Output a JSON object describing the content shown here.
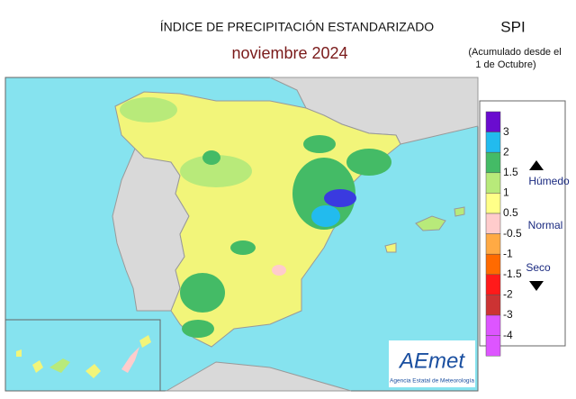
{
  "header": {
    "title": "ÍNDICE DE PRECIPITACIÓN ESTANDARIZADO",
    "subtitle": "noviembre  2024",
    "index": "SPI",
    "note": [
      "(Acumulado desde el",
      "1 de Octubre)"
    ]
  },
  "legend": {
    "items": [
      {
        "label": "3",
        "color": "#3a3ae0"
      },
      {
        "label": "2",
        "color": "#22bbee"
      },
      {
        "label": "1.5",
        "color": "#44bb66"
      },
      {
        "label": "1",
        "color": "#b8ea7a"
      },
      {
        "label": "0.5",
        "color": "#ffff88"
      },
      {
        "label": "-0.5",
        "color": "#ffcccc"
      },
      {
        "label": "-1",
        "color": "#ffaa44"
      },
      {
        "label": "-1.5",
        "color": "#ff6a00"
      },
      {
        "label": "-2",
        "color": "#ff1a1a"
      },
      {
        "label": "-3",
        "color": "#cc3333"
      },
      {
        "label": "-4",
        "color": "#dd55ff"
      }
    ],
    "top_color": "#6a0ccf",
    "wet": "Húmedo",
    "normal": "Normal",
    "dry": "Seco"
  },
  "logo": {
    "name": "AEmet",
    "agency": "Agencia Estatal de Meteorología"
  }
}
